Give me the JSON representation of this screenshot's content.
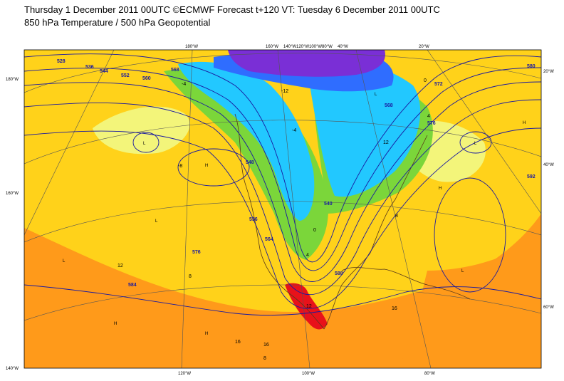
{
  "title_line1": "Thursday 1 December 2011 00UTC ©ECMWF Forecast t+120 VT: Tuesday 6 December 2011 00UTC",
  "title_line2": "850 hPa Temperature / 500 hPa Geopotential",
  "lon_top": [
    "180°W",
    "160°W",
    "140°W",
    "120°W",
    "100°W",
    "80°W",
    "40°W",
    "20°W"
  ],
  "lon_bottom": [
    "120°W",
    "100°W",
    "80°W"
  ],
  "lat_left": [
    "180°W",
    "160°W",
    "140°W"
  ],
  "lat_right": [
    "20°W",
    "40°W",
    "60°W"
  ],
  "geopotential_labels": [
    "528",
    "536",
    "544",
    "552",
    "560",
    "568",
    "576",
    "584",
    "588",
    "568",
    "576",
    "592",
    "540",
    "548",
    "556",
    "564",
    "572",
    "580"
  ],
  "temperature_labels": [
    "-12",
    "-8",
    "-4",
    "0",
    "4",
    "8",
    "12",
    "16",
    "16",
    "16",
    "12",
    "8",
    "4",
    "0",
    "-4",
    "8",
    "12"
  ],
  "pressure_markers": [
    "L",
    "L",
    "L",
    "L",
    "H",
    "H",
    "H",
    "H",
    "H",
    "L",
    "L"
  ],
  "colors": {
    "very_cold": "#7a2fd6",
    "cold": "#2f6dff",
    "cool": "#22c8ff",
    "mild_cool": "#3ed6a0",
    "neutral": "#7bd63a",
    "mild": "#e9f25a",
    "warm": "#ffd21a",
    "hot": "#ff9a1a",
    "very_hot": "#ff5a1a",
    "extreme": "#e8121a",
    "contour": "#1a1aa0",
    "coast": "#5a3a1a"
  }
}
